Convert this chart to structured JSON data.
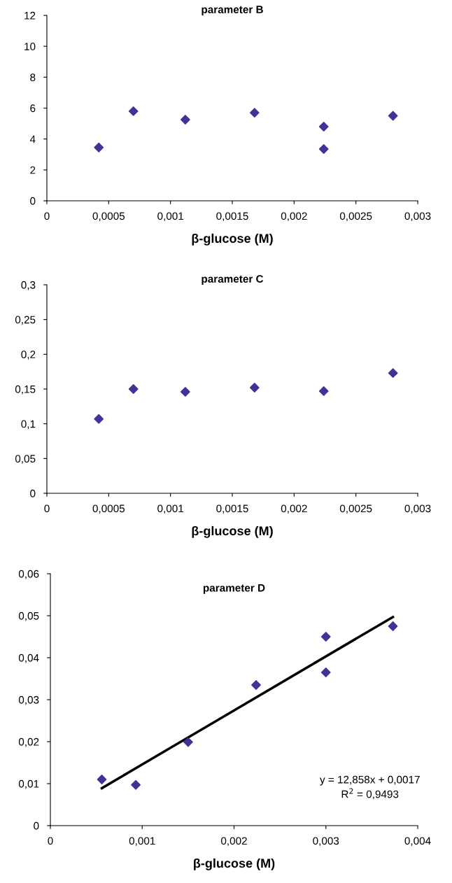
{
  "chart_data": [
    {
      "type": "scatter",
      "title": "parameter B",
      "xlabel": "β-glucose (M)",
      "marker": "diamond",
      "grid": false,
      "legend": false,
      "xlim": [
        0,
        0.003
      ],
      "xticks": [
        0,
        {
          "value": 0.0005,
          "label": "0,0005"
        },
        {
          "value": 0.001,
          "label": "0,001"
        },
        {
          "value": 0.0015,
          "label": "0,0015"
        },
        {
          "value": 0.002,
          "label": "0,002"
        },
        {
          "value": 0.0025,
          "label": "0,0025"
        },
        {
          "value": 0.003,
          "label": "0,003"
        }
      ],
      "ylim": [
        0,
        12
      ],
      "yticks": [
        0,
        2,
        4,
        6,
        8,
        10,
        12
      ],
      "series": [
        {
          "color": "#3f3399",
          "x": [
            0.00042,
            0.0007,
            0.00112,
            0.00168,
            0.00224,
            0.00224,
            0.0028
          ],
          "values": [
            3.45,
            5.8,
            5.25,
            5.7,
            4.8,
            3.35,
            5.5
          ]
        }
      ]
    },
    {
      "type": "scatter",
      "title": "parameter C",
      "xlabel": "β-glucose (M)",
      "marker": "diamond",
      "grid": false,
      "legend": false,
      "xlim": [
        0,
        0.003
      ],
      "xticks": [
        0,
        {
          "value": 0.0005,
          "label": "0,0005"
        },
        {
          "value": 0.001,
          "label": "0,001"
        },
        {
          "value": 0.0015,
          "label": "0,0015"
        },
        {
          "value": 0.002,
          "label": "0,002"
        },
        {
          "value": 0.0025,
          "label": "0,0025"
        },
        {
          "value": 0.003,
          "label": "0,003"
        }
      ],
      "ylim": [
        0,
        0.3
      ],
      "yticks": [
        0,
        {
          "value": 0.05,
          "label": "0,05"
        },
        {
          "value": 0.1,
          "label": "0,1"
        },
        {
          "value": 0.15,
          "label": "0,15"
        },
        {
          "value": 0.2,
          "label": "0,2"
        },
        {
          "value": 0.25,
          "label": "0,25"
        },
        {
          "value": 0.3,
          "label": "0,3"
        }
      ],
      "series": [
        {
          "color": "#3f3399",
          "x": [
            0.00042,
            0.0007,
            0.00112,
            0.00168,
            0.00224,
            0.0028
          ],
          "values": [
            0.107,
            0.15,
            0.146,
            0.152,
            0.147,
            0.173
          ]
        }
      ]
    },
    {
      "type": "scatter",
      "title": "parameter D",
      "xlabel": "β-glucose (M)",
      "marker": "diamond",
      "grid": false,
      "legend": false,
      "xlim": [
        0,
        0.004
      ],
      "xticks": [
        0,
        {
          "value": 0.001,
          "label": "0,001"
        },
        {
          "value": 0.002,
          "label": "0,002"
        },
        {
          "value": 0.003,
          "label": "0,003"
        },
        {
          "value": 0.004,
          "label": "0,004"
        }
      ],
      "ylim": [
        0,
        0.06
      ],
      "yticks": [
        0,
        {
          "value": 0.01,
          "label": "0,01"
        },
        {
          "value": 0.02,
          "label": "0,02"
        },
        {
          "value": 0.03,
          "label": "0,03"
        },
        {
          "value": 0.04,
          "label": "0,04"
        },
        {
          "value": 0.05,
          "label": "0,05"
        },
        {
          "value": 0.06,
          "label": "0,06"
        }
      ],
      "annotations": [
        "y = 12,858x + 0,0017\nR$^{2}$ = 0,9493"
      ],
      "series": [
        {
          "color": "#3f3399",
          "x": [
            0.00056,
            0.00093,
            0.0015,
            0.00224,
            0.003,
            0.003,
            0.00373
          ],
          "values": [
            0.011,
            0.0097,
            0.0199,
            0.0335,
            0.045,
            0.0365,
            0.0475
          ]
        },
        {
          "type": "line",
          "color": "#000000",
          "marker": "none",
          "x": [
            0.00056,
            0.00373
          ],
          "values": [
            0.0089,
            0.0497
          ]
        }
      ]
    }
  ]
}
